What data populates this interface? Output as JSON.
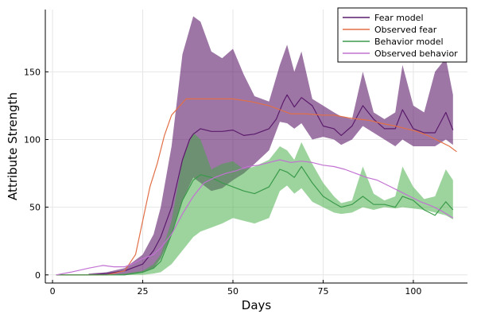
{
  "chart_data": {
    "type": "line",
    "title": "",
    "xlabel": "Days",
    "ylabel": "Attribute Strength",
    "xlim": [
      -2,
      115
    ],
    "ylim": [
      -6,
      196
    ],
    "xticks": [
      0,
      25,
      50,
      75,
      100
    ],
    "yticks": [
      0,
      50,
      100,
      150
    ],
    "grid": true,
    "legend_position": "top-right",
    "bands": [
      {
        "name": "Fear model band",
        "color": "#5b1b6b",
        "opacity": 0.6,
        "x": [
          10,
          15,
          20,
          25,
          28,
          30,
          33,
          36,
          39,
          41,
          44,
          47,
          50,
          53,
          56,
          60,
          63,
          65,
          67,
          69,
          72,
          75,
          78,
          80,
          83,
          86,
          89,
          92,
          95,
          97,
          100,
          103,
          106,
          109,
          111
        ],
        "upper": [
          1,
          2,
          5,
          15,
          30,
          50,
          95,
          163,
          191,
          187,
          165,
          160,
          167,
          148,
          132,
          128,
          155,
          170,
          150,
          165,
          130,
          125,
          120,
          117,
          115,
          150,
          120,
          115,
          120,
          155,
          125,
          120,
          150,
          160,
          133
        ],
        "lower": [
          0,
          0,
          0,
          2,
          5,
          12,
          30,
          55,
          72,
          68,
          62,
          64,
          70,
          75,
          82,
          92,
          113,
          112,
          108,
          112,
          100,
          102,
          100,
          96,
          100,
          110,
          105,
          100,
          95,
          100,
          95,
          95,
          95,
          100,
          96
        ]
      },
      {
        "name": "Behavior model band",
        "color": "#3caa3c",
        "opacity": 0.5,
        "x": [
          10,
          15,
          20,
          25,
          28,
          30,
          33,
          36,
          39,
          41,
          44,
          47,
          50,
          53,
          56,
          60,
          63,
          65,
          67,
          69,
          72,
          75,
          78,
          80,
          83,
          86,
          89,
          92,
          95,
          97,
          100,
          103,
          106,
          109,
          111
        ],
        "upper": [
          0,
          0,
          1,
          3,
          8,
          15,
          40,
          85,
          105,
          100,
          78,
          82,
          84,
          78,
          80,
          85,
          95,
          92,
          85,
          98,
          82,
          68,
          58,
          53,
          55,
          80,
          60,
          55,
          58,
          80,
          65,
          56,
          58,
          78,
          70
        ],
        "lower": [
          0,
          0,
          0,
          0,
          1,
          2,
          8,
          18,
          28,
          32,
          35,
          38,
          42,
          40,
          38,
          42,
          62,
          66,
          60,
          64,
          54,
          50,
          46,
          45,
          46,
          50,
          48,
          50,
          49,
          50,
          49,
          48,
          46,
          44,
          41
        ]
      }
    ],
    "series": [
      {
        "name": "Fear model",
        "color": "#5b1b6b",
        "x": [
          1,
          10,
          15,
          20,
          25,
          28,
          30,
          33,
          36,
          38,
          39,
          41,
          44,
          47,
          50,
          53,
          56,
          60,
          62,
          64,
          65,
          67,
          69,
          72,
          75,
          78,
          80,
          83,
          86,
          89,
          92,
          95,
          97,
          100,
          103,
          106,
          109,
          111
        ],
        "y": [
          0,
          0,
          1,
          3,
          8,
          18,
          28,
          50,
          85,
          100,
          104,
          108,
          106,
          106,
          107,
          103,
          104,
          108,
          115,
          128,
          133,
          124,
          131,
          125,
          110,
          108,
          103,
          110,
          125,
          115,
          108,
          108,
          122,
          108,
          105,
          105,
          120,
          107
        ]
      },
      {
        "name": "Observed fear",
        "color": "#e26f46",
        "x": [
          1,
          10,
          15,
          20,
          23,
          25,
          27,
          29,
          31,
          33,
          35,
          37,
          40,
          45,
          50,
          55,
          60,
          63,
          66,
          70,
          75,
          78,
          80,
          82,
          85,
          88,
          91,
          95,
          98,
          101,
          104,
          107,
          110,
          112
        ],
        "y": [
          0,
          0,
          0,
          3,
          15,
          40,
          65,
          82,
          103,
          118,
          124,
          130,
          130,
          130,
          130,
          128,
          125,
          122,
          119,
          119,
          118,
          118,
          117,
          116,
          115,
          114,
          112,
          110,
          108,
          106,
          103,
          99,
          95,
          91
        ]
      },
      {
        "name": "Behavior model",
        "color": "#3a9a4a",
        "x": [
          1,
          10,
          15,
          20,
          25,
          28,
          30,
          33,
          36,
          39,
          41,
          44,
          47,
          50,
          53,
          56,
          60,
          63,
          65,
          67,
          69,
          72,
          75,
          78,
          80,
          83,
          86,
          89,
          92,
          95,
          97,
          100,
          103,
          106,
          109,
          111
        ],
        "y": [
          0,
          0,
          0,
          0,
          2,
          5,
          10,
          30,
          55,
          70,
          74,
          72,
          68,
          65,
          62,
          60,
          65,
          78,
          76,
          72,
          80,
          68,
          58,
          53,
          50,
          52,
          58,
          52,
          52,
          50,
          58,
          55,
          48,
          44,
          54,
          48
        ]
      },
      {
        "name": "Observed behavior",
        "color": "#c272d2",
        "x": [
          1,
          5,
          10,
          14,
          17,
          20,
          22,
          25,
          28,
          30,
          33,
          36,
          39,
          42,
          45,
          48,
          51,
          54,
          57,
          60,
          63,
          66,
          69,
          72,
          75,
          78,
          81,
          84,
          87,
          90,
          93,
          96,
          99,
          102,
          105,
          108,
          111
        ],
        "y": [
          0,
          2,
          5,
          7,
          6,
          6,
          8,
          12,
          15,
          20,
          30,
          45,
          58,
          68,
          72,
          75,
          77,
          80,
          81,
          83,
          85,
          83,
          84,
          83,
          81,
          80,
          78,
          75,
          72,
          70,
          66,
          62,
          58,
          54,
          51,
          47,
          42
        ]
      }
    ]
  }
}
